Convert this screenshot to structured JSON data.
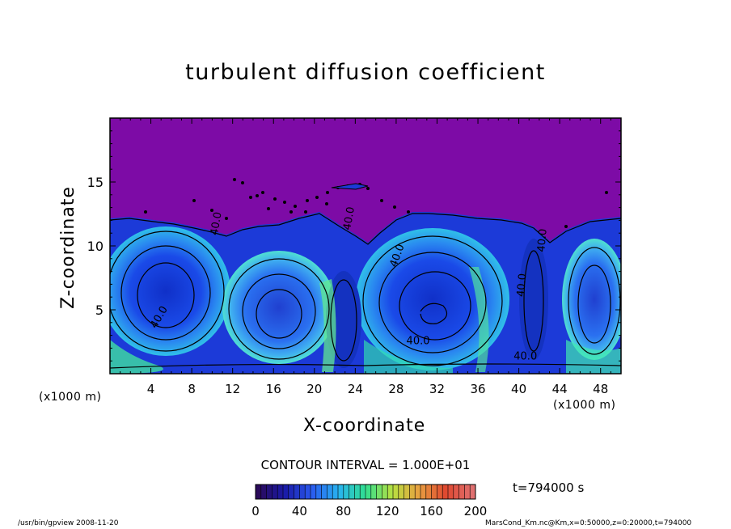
{
  "chart_data": {
    "type": "heatmap",
    "title": "turbulent diffusion coefficient",
    "xlabel": "X-coordinate",
    "ylabel": "Z-coordinate",
    "x_unit": "(x1000 m)",
    "y_unit": "(x1000 m)",
    "xlim": [
      0,
      50
    ],
    "ylim": [
      0,
      20
    ],
    "x_ticks": [
      "4",
      "8",
      "12",
      "16",
      "20",
      "24",
      "28",
      "32",
      "36",
      "40",
      "44",
      "48"
    ],
    "y_ticks": [
      "5",
      "10",
      "15"
    ],
    "contour_interval_label": "CONTOUR INTERVAL = 1.000E+01",
    "contour_labels": [
      "40.0",
      "40.0",
      "40.0",
      "40.0",
      "40.0",
      "40.0",
      "40.0",
      "40.0"
    ],
    "colorbar": {
      "min": 0,
      "max": 200,
      "ticks": [
        "0",
        "40",
        "80",
        "120",
        "160",
        "200"
      ],
      "colors": [
        "#2a0a5a",
        "#1a1aa8",
        "#2a5af0",
        "#28b4f0",
        "#30e090",
        "#b8e040",
        "#e8a040",
        "#e04830",
        "#e07070"
      ]
    },
    "background_color": "#7d0ba6",
    "time_label": "t=794000 s",
    "footer_left": "/usr/bin/gpview   2008-11-20",
    "footer_right": "MarsCond_Km.nc@Km,x=0:50000,z=0:20000,t=794000"
  }
}
